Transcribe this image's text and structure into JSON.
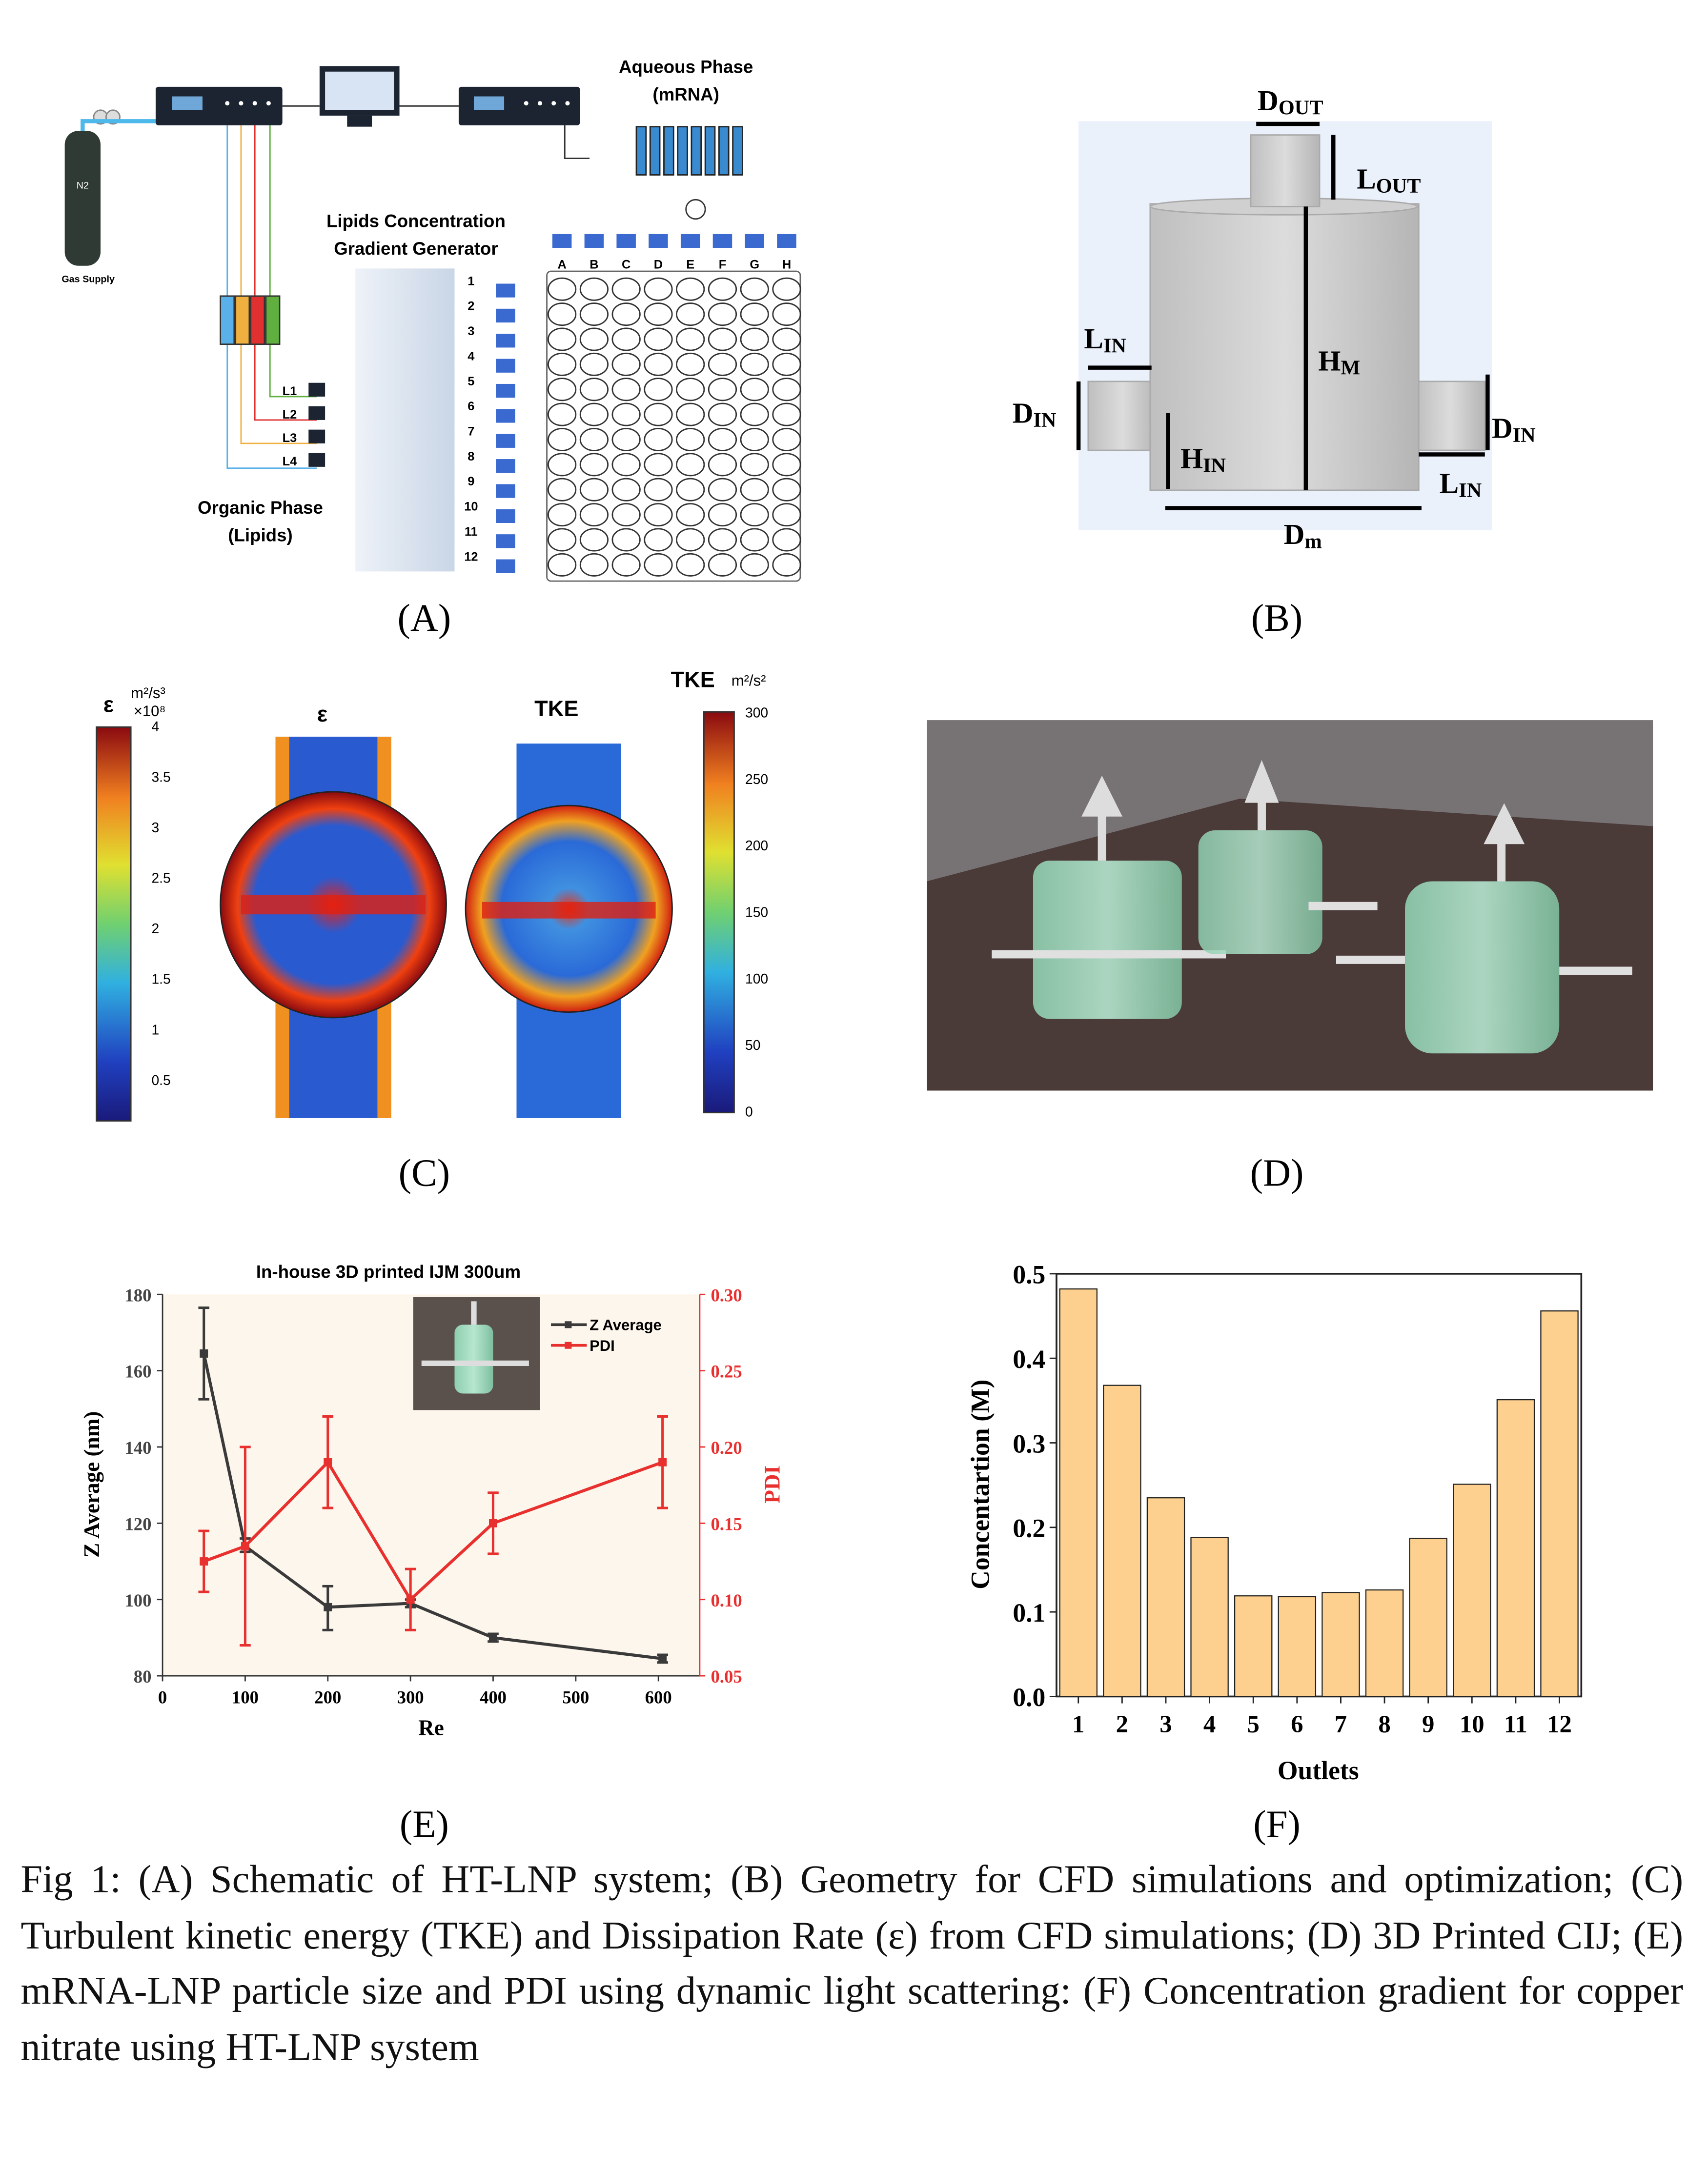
{
  "panel_labels": {
    "a": "(A)",
    "b": "(B)",
    "c": "(C)",
    "d": "(D)",
    "e": "(E)",
    "f": "(F)"
  },
  "panel_a": {
    "aqueous_phase": "Aqueous Phase",
    "aqueous_sub": "(mRNA)",
    "generator_line1": "Lipids Concentration",
    "generator_line2": "Gradient Generator",
    "organic_phase": "Organic Phase",
    "organic_sub": "(Lipids)",
    "gas_supply": "Gas Supply",
    "cylinder": "N2",
    "lipid_lines": [
      "L1",
      "L2",
      "L3",
      "L4"
    ],
    "columns": [
      "A",
      "B",
      "C",
      "D",
      "E",
      "F",
      "G",
      "H"
    ],
    "rows": [
      "1",
      "2",
      "3",
      "4",
      "5",
      "6",
      "7",
      "8",
      "9",
      "10",
      "11",
      "12"
    ]
  },
  "panel_b": {
    "d_out": "D",
    "d_out_sub": "OUT",
    "l_out": "L",
    "l_out_sub": "OUT",
    "h_m": "H",
    "h_m_sub": "M",
    "l_in": "L",
    "l_in_sub": "IN",
    "d_in": "D",
    "d_in_sub": "IN",
    "h_in": "H",
    "h_in_sub": "IN",
    "d_m": "D",
    "d_m_sub": "m"
  },
  "panel_c": {
    "eps_symbol": "ε",
    "eps_units": "m²/s³",
    "eps_scale": "×10⁸",
    "eps_title": "ε",
    "eps_ticks": [
      "4",
      "3.5",
      "3",
      "2.5",
      "2",
      "1.5",
      "1",
      "0.5"
    ],
    "tke_title": "TKE",
    "tke_bar_title": "TKE",
    "tke_units": "m²/s²",
    "tke_ticks": [
      "300",
      "250",
      "200",
      "150",
      "100",
      "50",
      "0"
    ]
  },
  "chart_data": [
    {
      "type": "line",
      "title": "In-house 3D printed IJM 300um",
      "xlabel": "Re",
      "ylabel": "Z Average (nm)",
      "y2label": "PDI",
      "xlim": [
        0,
        650
      ],
      "ylim": [
        80,
        180
      ],
      "y2lim": [
        0.05,
        0.3
      ],
      "xticks": [
        "0",
        "100",
        "200",
        "300",
        "400",
        "500",
        "600"
      ],
      "yticks": [
        "80",
        "100",
        "120",
        "140",
        "160",
        "180"
      ],
      "y2ticks": [
        "0.05",
        "0.10",
        "0.15",
        "0.20",
        "0.25",
        "0.30"
      ],
      "legend": "top-right",
      "x": [
        50,
        100,
        200,
        300,
        400,
        605
      ],
      "series": [
        {
          "name": "Z Average",
          "axis": "left",
          "color": "#3a3a3a",
          "values": [
            164.5,
            114,
            98,
            99,
            90,
            84.5
          ],
          "err_low": [
            152.5,
            112.5,
            92,
            98,
            89,
            83.5
          ],
          "err_high": [
            176.5,
            116,
            103.5,
            100,
            91,
            85.5
          ]
        },
        {
          "name": "PDI",
          "axis": "right",
          "color": "#e8302e",
          "values": [
            0.125,
            0.135,
            0.19,
            0.1,
            0.15,
            0.19
          ],
          "err_low": [
            0.105,
            0.07,
            0.16,
            0.08,
            0.13,
            0.16
          ],
          "err_high": [
            0.145,
            0.2,
            0.22,
            0.12,
            0.17,
            0.22
          ]
        }
      ]
    },
    {
      "type": "bar",
      "title": "",
      "xlabel": "Outlets",
      "ylabel": "Concentartion (M)",
      "ylim": [
        0,
        0.5
      ],
      "yticks": [
        "0.0",
        "0.1",
        "0.2",
        "0.3",
        "0.4",
        "0.5"
      ],
      "categories": [
        "1",
        "2",
        "3",
        "4",
        "5",
        "6",
        "7",
        "8",
        "9",
        "10",
        "11",
        "12"
      ],
      "values": [
        0.482,
        0.368,
        0.235,
        0.188,
        0.119,
        0.118,
        0.123,
        0.126,
        0.187,
        0.251,
        0.351,
        0.456
      ],
      "color": "#fdd08f"
    }
  ],
  "caption": "Fig 1: (A) Schematic of HT-LNP system; (B) Geometry for CFD simulations and optimization; (C) Turbulent kinetic energy (TKE) and Dissipation Rate (ε) from CFD simulations; (D) 3D Printed CIJ; (E) mRNA-LNP particle size and PDI using dynamic light scattering: (F) Concentration gradient for copper nitrate using HT-LNP system"
}
